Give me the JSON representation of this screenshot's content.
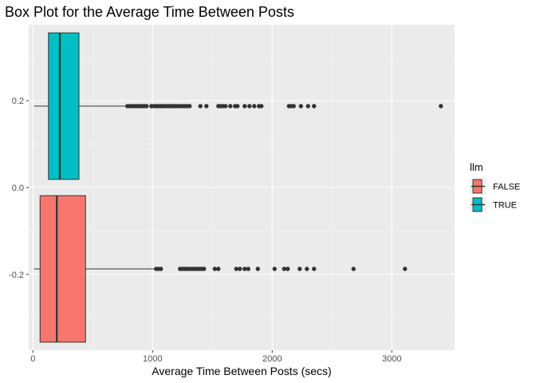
{
  "chart_data": {
    "type": "boxplot",
    "orientation": "horizontal",
    "title": "Box Plot for the Average Time Between Posts",
    "xlabel": "Average Time Between Posts (secs)",
    "ylabel": "",
    "xlim": [
      -35,
      3525
    ],
    "ylim": [
      -0.375,
      0.375
    ],
    "x_ticks": [
      0,
      1000,
      2000,
      3000
    ],
    "y_ticks": [
      -0.2,
      0.0,
      0.2
    ],
    "y_tick_labels": [
      "-0.2",
      "0.0",
      "0.2"
    ],
    "grid": true,
    "legend": {
      "title": "llm",
      "placement": "right"
    },
    "series": [
      {
        "name": "FALSE",
        "color": "#F8766D",
        "y_center": -0.1875,
        "box_height": 0.3375,
        "whisker_low": 10,
        "q1": 60,
        "median": 200,
        "q3": 440,
        "whisker_high": 1020,
        "outliers": [
          1030,
          1050,
          1070,
          1230,
          1250,
          1270,
          1290,
          1310,
          1330,
          1350,
          1370,
          1390,
          1410,
          1430,
          1520,
          1550,
          1700,
          1730,
          1770,
          1800,
          1880,
          2020,
          2100,
          2130,
          2230,
          2290,
          2350,
          2680,
          3110
        ]
      },
      {
        "name": "TRUE",
        "color": "#00BFC4",
        "y_center": 0.1875,
        "box_height": 0.3375,
        "whisker_low": 10,
        "q1": 130,
        "median": 225,
        "q3": 385,
        "whisker_high": 780,
        "outliers": [
          790,
          810,
          830,
          850,
          870,
          890,
          910,
          930,
          950,
          990,
          1010,
          1030,
          1050,
          1070,
          1090,
          1110,
          1130,
          1150,
          1170,
          1190,
          1210,
          1230,
          1250,
          1270,
          1290,
          1310,
          1400,
          1450,
          1550,
          1570,
          1590,
          1610,
          1650,
          1690,
          1710,
          1770,
          1810,
          1850,
          1890,
          1910,
          2140,
          2160,
          2180,
          2240,
          2300,
          2350,
          3410
        ]
      }
    ]
  }
}
